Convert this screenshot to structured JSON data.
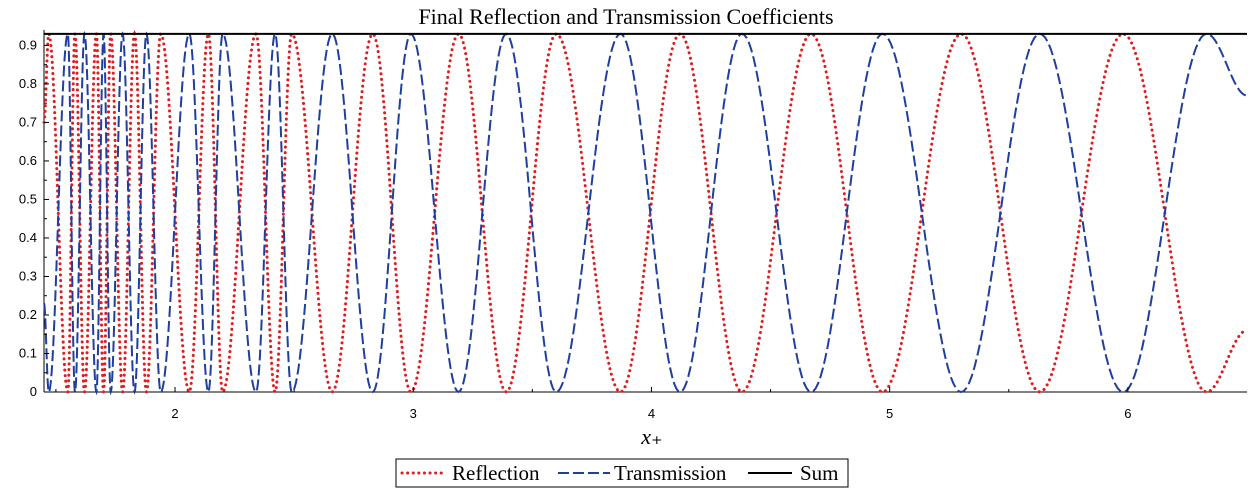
{
  "chart_data": {
    "type": "line",
    "title": "Final Reflection and Transmission Coefficients",
    "xlabel": "x₊",
    "ylabel": "",
    "xlim": [
      1.45,
      6.5
    ],
    "ylim": [
      0,
      0.94
    ],
    "xticks": [
      2,
      3,
      4,
      5,
      6
    ],
    "yticks": [
      0,
      0.1,
      0.2,
      0.3,
      0.4,
      0.5,
      0.6,
      0.7,
      0.8,
      0.9
    ],
    "xtick_labels": [
      "2",
      "3",
      "4",
      "5",
      "6"
    ],
    "ytick_labels": [
      "0",
      "0.1",
      "0.2",
      "0.3",
      "0.4",
      "0.5",
      "0.6",
      "0.7",
      "0.8",
      "0.9"
    ],
    "grid": false,
    "legend_position": "bottom",
    "series": [
      {
        "name": "Reflection",
        "style": "dotted",
        "color": "#e41a1c",
        "x": [
          1.45,
          1.47,
          1.55,
          1.58,
          1.62,
          1.67,
          1.7,
          1.73,
          1.78,
          1.83,
          1.88,
          1.94,
          2.06,
          2.14,
          2.2,
          2.34,
          2.42,
          2.49,
          2.66,
          2.83,
          2.99,
          3.19,
          3.39,
          3.6,
          3.87,
          4.12,
          4.38,
          4.67,
          4.97,
          5.3,
          5.63,
          5.98,
          6.33,
          6.5
        ],
        "y": [
          0.7,
          0.93,
          0.0,
          0.93,
          0.0,
          0.93,
          0.0,
          0.93,
          0.0,
          0.93,
          0.0,
          0.93,
          0.0,
          0.93,
          0.0,
          0.93,
          0.0,
          0.93,
          0.0,
          0.93,
          0.0,
          0.93,
          0.0,
          0.93,
          0.0,
          0.93,
          0.0,
          0.93,
          0.0,
          0.93,
          0.0,
          0.93,
          0.0,
          0.16
        ]
      },
      {
        "name": "Transmission",
        "style": "dashed",
        "color": "#1f3f9f",
        "x": [
          1.45,
          1.47,
          1.55,
          1.58,
          1.62,
          1.67,
          1.7,
          1.73,
          1.78,
          1.83,
          1.88,
          1.94,
          2.06,
          2.14,
          2.2,
          2.34,
          2.42,
          2.49,
          2.66,
          2.83,
          2.99,
          3.19,
          3.39,
          3.6,
          3.87,
          4.12,
          4.38,
          4.67,
          4.97,
          5.3,
          5.63,
          5.98,
          6.33,
          6.5
        ],
        "y": [
          0.23,
          0.0,
          0.93,
          0.0,
          0.93,
          0.0,
          0.93,
          0.0,
          0.93,
          0.0,
          0.93,
          0.0,
          0.93,
          0.0,
          0.93,
          0.0,
          0.93,
          0.0,
          0.93,
          0.0,
          0.93,
          0.0,
          0.93,
          0.0,
          0.93,
          0.0,
          0.93,
          0.0,
          0.93,
          0.0,
          0.93,
          0.0,
          0.93,
          0.77
        ]
      },
      {
        "name": "Sum",
        "style": "solid",
        "color": "#000000",
        "x": [
          1.45,
          6.5
        ],
        "y": [
          0.93,
          0.93
        ]
      }
    ]
  }
}
